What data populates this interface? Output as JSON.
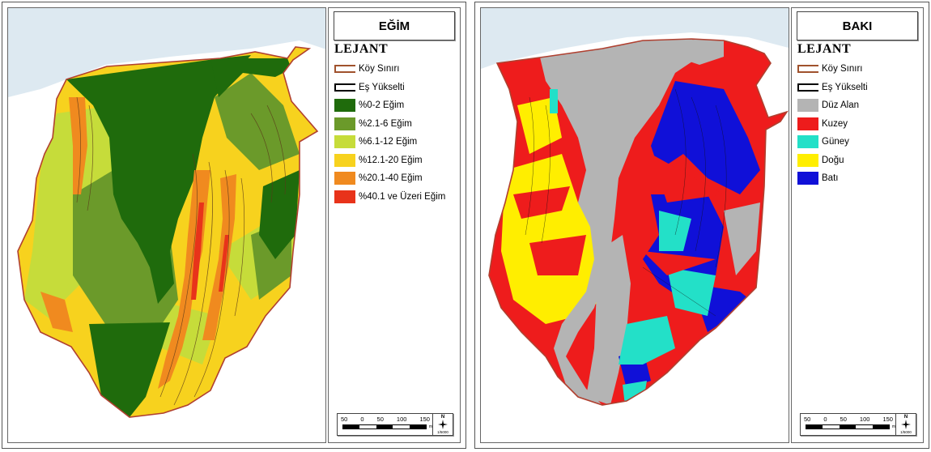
{
  "panels": [
    {
      "title": "EĞİM",
      "legend_heading": "LEJANT",
      "line_items": [
        {
          "label": "Köy Sınırı",
          "color": "#a0522d"
        },
        {
          "label": "Eş Yükselti",
          "color": "#000000"
        }
      ],
      "items": [
        {
          "label": "%0-2 Eğim",
          "color": "#1f6b0c"
        },
        {
          "label": "%2.1-6 Eğim",
          "color": "#6b9a2a"
        },
        {
          "label": "%6.1-12 Eğim",
          "color": "#c6dc3a"
        },
        {
          "label": "%12.1-20 Eğim",
          "color": "#f7d21e"
        },
        {
          "label": "%20.1-40 Eğim",
          "color": "#f08a1f"
        },
        {
          "label": "%40.1 ve Üzeri Eğim",
          "color": "#e8331a"
        }
      ],
      "scale_labels": [
        "50",
        "0",
        "50",
        "100",
        "150"
      ],
      "scale_unit": "m",
      "north_label": "N",
      "scale_text": "1/5000"
    },
    {
      "title": "BAKI",
      "legend_heading": "LEJANT",
      "line_items": [
        {
          "label": "Köy Sınırı",
          "color": "#a0522d"
        },
        {
          "label": "Eş Yükselti",
          "color": "#000000"
        }
      ],
      "items": [
        {
          "label": "Düz Alan",
          "color": "#b4b4b4"
        },
        {
          "label": "Kuzey",
          "color": "#ee1c1c"
        },
        {
          "label": "Güney",
          "color": "#23e0c8"
        },
        {
          "label": "Doğu",
          "color": "#ffee00"
        },
        {
          "label": "Batı",
          "color": "#1010d8"
        }
      ],
      "scale_labels": [
        "50",
        "0",
        "50",
        "100",
        "150"
      ],
      "scale_unit": "m",
      "north_label": "N",
      "scale_text": "1/5000"
    }
  ]
}
